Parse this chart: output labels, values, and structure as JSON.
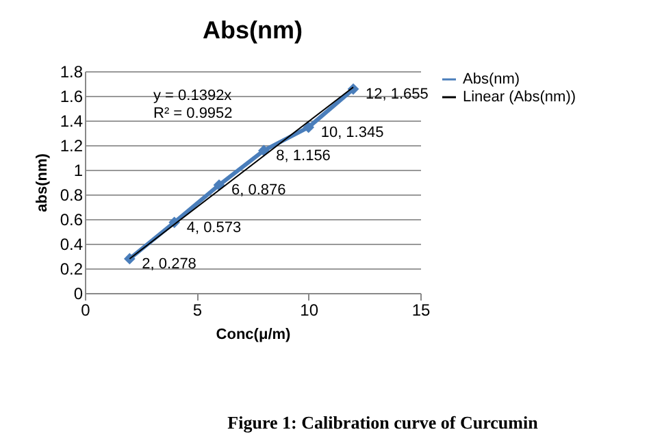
{
  "chart_data": {
    "type": "line",
    "title": "Abs(nm)",
    "xlabel": "Conc(μ/m)",
    "ylabel": "abs(nm)",
    "x": [
      2,
      4,
      6,
      8,
      10,
      12
    ],
    "series": [
      {
        "name": "Abs(nm)",
        "color": "#4a7ebb",
        "values": [
          0.278,
          0.573,
          0.876,
          1.156,
          1.345,
          1.655
        ],
        "marker": "diamond",
        "value_labels": [
          "2, 0.278",
          "4, 0.573",
          "6, 0.876",
          "8, 1.156",
          "10, 1.345",
          "12, 1.655"
        ]
      },
      {
        "name": "Linear (Abs(nm))",
        "color": "#000000",
        "type": "line",
        "x": [
          2,
          12
        ],
        "values": [
          0.278,
          1.67
        ],
        "marker": "none"
      }
    ],
    "xlim": [
      0,
      15
    ],
    "xticks": [
      0,
      5,
      10,
      15
    ],
    "ylim": [
      0,
      1.8
    ],
    "yticks": [
      0,
      0.2,
      0.4,
      0.6,
      0.8,
      1,
      1.2,
      1.4,
      1.6,
      1.8
    ],
    "grid": "y",
    "legend": "right",
    "annotations": [
      "y = 0.1392x",
      "R² = 0.9952",
      "Figure 1: Calibration curve of Curcumin"
    ]
  }
}
